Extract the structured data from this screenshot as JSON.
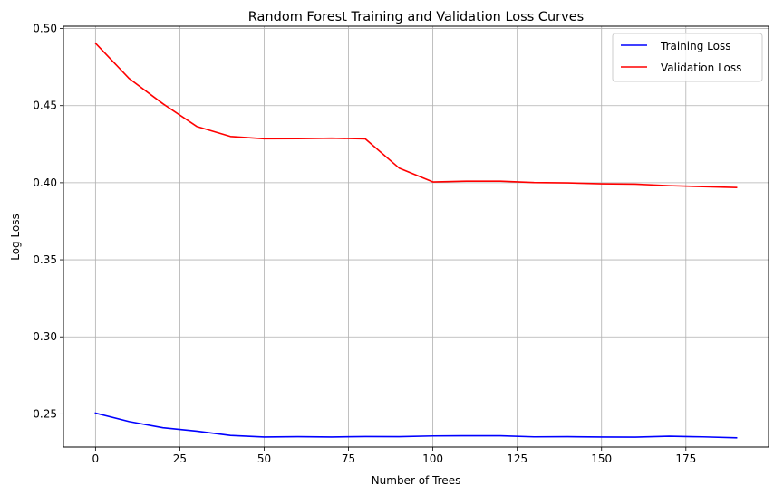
{
  "chart_data": {
    "type": "line",
    "title": "Random Forest Training and Validation Loss Curves",
    "xlabel": "Number of Trees",
    "ylabel": "Log Loss",
    "xlim": [
      -9.5,
      199.5
    ],
    "ylim": [
      0.2285,
      0.5015
    ],
    "xticks": [
      0,
      25,
      50,
      75,
      100,
      125,
      150,
      175
    ],
    "yticks": [
      0.25,
      0.3,
      0.35,
      0.4,
      0.45,
      0.5
    ],
    "ytick_labels": [
      "0.25",
      "0.30",
      "0.35",
      "0.40",
      "0.45",
      "0.50"
    ],
    "grid": true,
    "legend_position": "top-right",
    "x": [
      0,
      10,
      20,
      30,
      40,
      50,
      60,
      70,
      80,
      90,
      100,
      110,
      120,
      130,
      140,
      150,
      160,
      170,
      180,
      190
    ],
    "series": [
      {
        "name": "Training Loss",
        "color": "#0000ff",
        "values": [
          0.2505,
          0.245,
          0.241,
          0.2388,
          0.236,
          0.235,
          0.2352,
          0.235,
          0.2353,
          0.2352,
          0.2357,
          0.2358,
          0.2358,
          0.2351,
          0.2352,
          0.235,
          0.2349,
          0.2355,
          0.2351,
          0.2345
        ]
      },
      {
        "name": "Validation Loss",
        "color": "#ff0000",
        "values": [
          0.4905,
          0.4675,
          0.4512,
          0.4365,
          0.43,
          0.4285,
          0.4286,
          0.4289,
          0.4284,
          0.4095,
          0.4005,
          0.401,
          0.401,
          0.4001,
          0.3999,
          0.3993,
          0.3991,
          0.3981,
          0.3975,
          0.3969
        ]
      }
    ]
  }
}
